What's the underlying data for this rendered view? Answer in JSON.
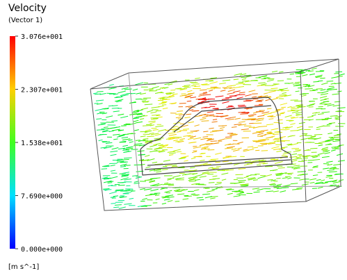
{
  "legend": {
    "title": "Velocity",
    "subtitle": "(Vector 1)",
    "ticks": [
      {
        "value": 30.76,
        "label": "3.076e+001"
      },
      {
        "value": 23.07,
        "label": "2.307e+001"
      },
      {
        "value": 15.38,
        "label": "1.538e+001"
      },
      {
        "value": 7.69,
        "label": "7.690e+000"
      },
      {
        "value": 0,
        "label": "0.000e+000"
      }
    ],
    "units": "[m s^-1]"
  }
}
